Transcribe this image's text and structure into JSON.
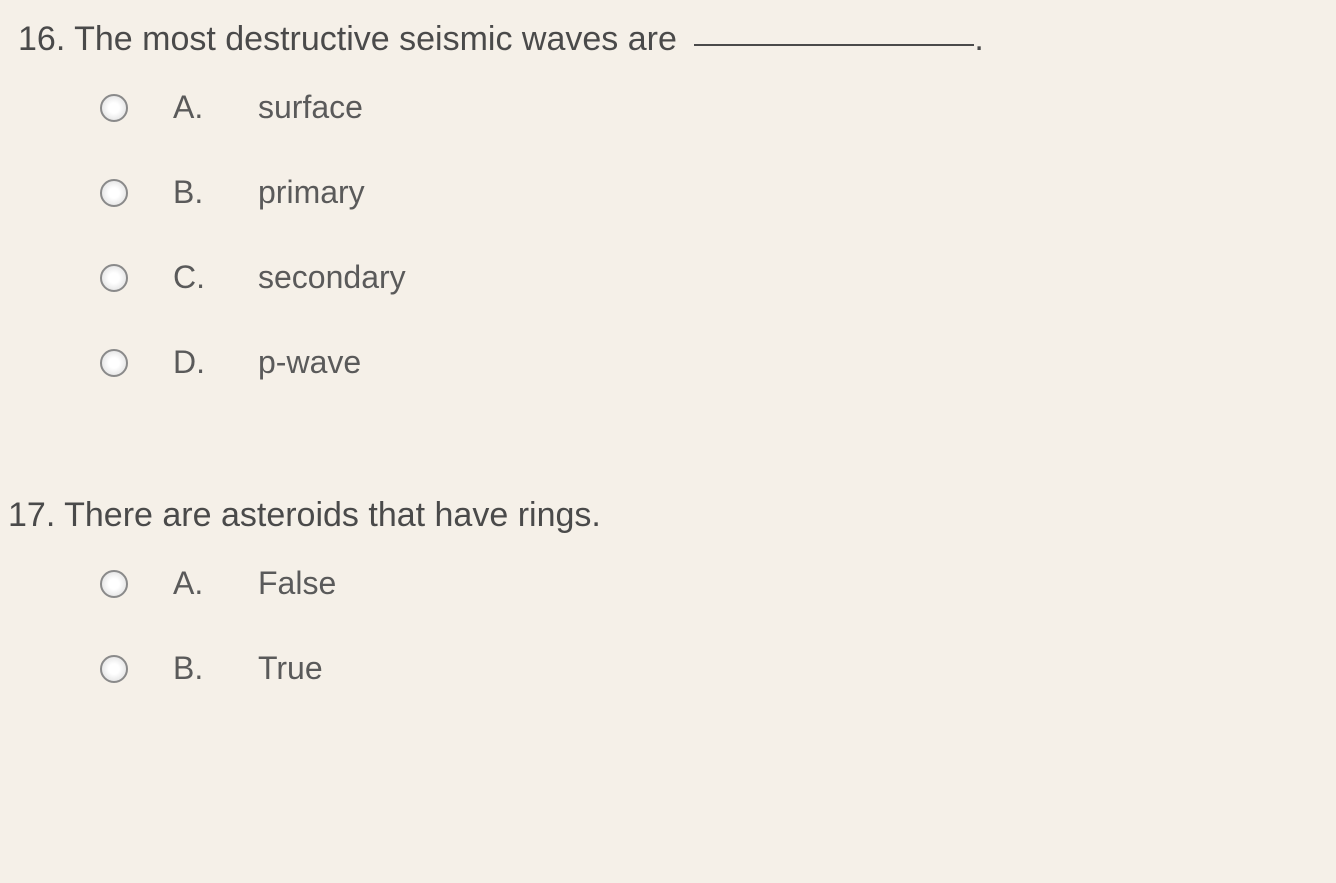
{
  "questions": [
    {
      "number": "16.",
      "text": "The most destructive seismic waves are",
      "has_blank": true,
      "blank_suffix": ".",
      "options": [
        {
          "letter": "A.",
          "text": "surface"
        },
        {
          "letter": "B.",
          "text": "primary"
        },
        {
          "letter": "C.",
          "text": "secondary"
        },
        {
          "letter": "D.",
          "text": "p-wave"
        }
      ]
    },
    {
      "number": "17.",
      "text": "There are asteroids that have rings.",
      "has_blank": false,
      "options": [
        {
          "letter": "A.",
          "text": "False"
        },
        {
          "letter": "B.",
          "text": "True"
        }
      ]
    }
  ],
  "styling": {
    "background_color": "#f5f0e8",
    "text_color": "#4a4a4a",
    "option_text_color": "#5a5a5a",
    "question_fontsize": 34,
    "option_fontsize": 32,
    "radio_border_color": "#8a8a8a",
    "blank_line_width": 280
  }
}
